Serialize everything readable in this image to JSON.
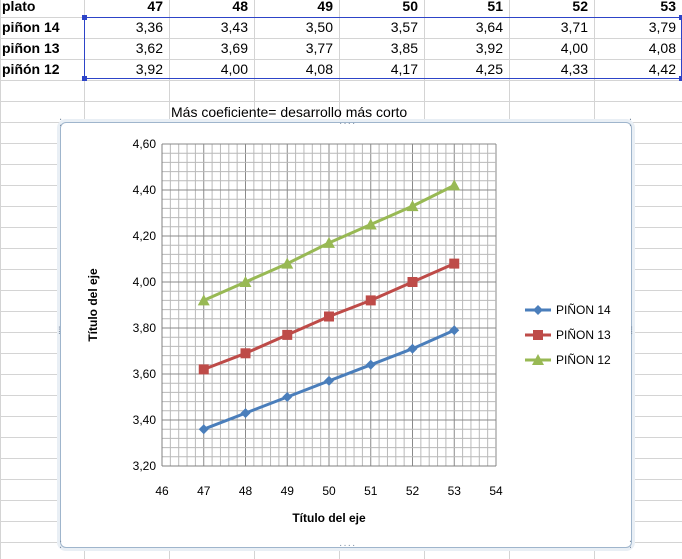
{
  "sheet": {
    "header_label": "plato",
    "columns": [
      "47",
      "48",
      "49",
      "50",
      "51",
      "52",
      "53"
    ],
    "rows": [
      {
        "label": "piñon 14",
        "values": [
          "3,36",
          "3,43",
          "3,50",
          "3,57",
          "3,64",
          "3,71",
          "3,79"
        ]
      },
      {
        "label": "piñon 13",
        "values": [
          "3,62",
          "3,69",
          "3,77",
          "3,85",
          "3,92",
          "4,00",
          "4,08"
        ]
      },
      {
        "label": "piñón 12",
        "values": [
          "3,92",
          "4,00",
          "4,08",
          "4,17",
          "4,25",
          "4,33",
          "4,42"
        ]
      }
    ],
    "note": "Más coeficiente= desarrollo más corto"
  },
  "chart_data": {
    "type": "line",
    "title": "",
    "xlabel": "Título del eje",
    "ylabel": "Título del eje",
    "xlim": [
      46,
      54
    ],
    "ylim": [
      3.2,
      4.6
    ],
    "x_ticks": [
      "46",
      "47",
      "48",
      "49",
      "50",
      "51",
      "52",
      "53",
      "54"
    ],
    "y_ticks": [
      "3,20",
      "3,40",
      "3,60",
      "3,80",
      "4,00",
      "4,20",
      "4,40",
      "4,60"
    ],
    "grid": "major and minor",
    "legend_position": "right",
    "x": [
      47,
      48,
      49,
      50,
      51,
      52,
      53
    ],
    "series": [
      {
        "name": "PIÑON 14",
        "marker": "diamond",
        "color": "#4a7ebb",
        "values": [
          3.36,
          3.43,
          3.5,
          3.57,
          3.64,
          3.71,
          3.79
        ]
      },
      {
        "name": "PIÑON 13",
        "marker": "square",
        "color": "#be4b48",
        "values": [
          3.62,
          3.69,
          3.77,
          3.85,
          3.92,
          4.0,
          4.08
        ]
      },
      {
        "name": "PIÑON 12",
        "marker": "triangle",
        "color": "#98b954",
        "values": [
          3.92,
          4.0,
          4.08,
          4.17,
          4.25,
          4.33,
          4.42
        ]
      }
    ]
  }
}
